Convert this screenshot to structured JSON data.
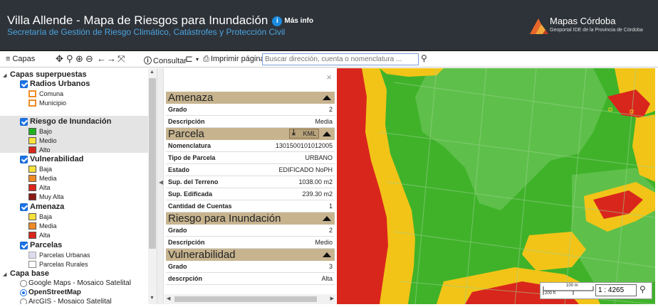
{
  "header": {
    "title": "Villa Allende - Mapa de Riesgos para Inundación",
    "more_info": "Más info",
    "subtitle": "Secretaría de Gestión de Riesgo Climático, Catástrofes y Protección Civil",
    "brand_name": "Mapas Córdoba",
    "brand_sub": "Geoportal IDE de la Provincia de Córdoba"
  },
  "toolbar": {
    "layers_label": "Capas",
    "consult_label": "Consultar",
    "print_label": "Imprimir página",
    "search_placeholder": "Buscar dirección, cuenta o nomenclatura ..."
  },
  "layers": {
    "overlays_title": "Capas superpuestas",
    "radios": {
      "label": "Radios Urbanos",
      "items": [
        "Comuna",
        "Municipio"
      ]
    },
    "riesgo": {
      "label": "Riesgo de Inundación",
      "items": [
        "Bajo",
        "Medio",
        "Alto"
      ]
    },
    "vulnerabilidad": {
      "label": "Vulnerabilidad",
      "items": [
        "Baja",
        "Media",
        "Alta",
        "Muy Alta"
      ]
    },
    "amenaza": {
      "label": "Amenaza",
      "items": [
        "Baja",
        "Media",
        "Alta"
      ]
    },
    "parcelas": {
      "label": "Parcelas",
      "items": [
        "Parcelas Urbanas",
        "Parcelas Rurales"
      ]
    },
    "base_title": "Capa base",
    "base_items": [
      "Google Maps - Mosaico Satelital",
      "OpenStreetMap",
      "ArcGIS - Mosaico Satelital"
    ]
  },
  "info": {
    "amenaza": {
      "title": "Amenaza",
      "rows": [
        [
          "Grado",
          "2"
        ],
        [
          "Descripción",
          "Media"
        ]
      ]
    },
    "parcela": {
      "title": "Parcela",
      "kml": "KML",
      "rows": [
        [
          "Nomenclatura",
          "1301500101012005"
        ],
        [
          "Tipo de Parcela",
          "URBANO"
        ],
        [
          "Estado",
          "EDIFICADO NoPH"
        ],
        [
          "Sup. del Terreno",
          "1038.00 m2"
        ],
        [
          "Sup. Edificada",
          "239.30 m2"
        ],
        [
          "Cantidad de Cuentas",
          "1"
        ]
      ]
    },
    "riesgo": {
      "title": "Riesgo para Inundación",
      "rows": [
        [
          "Grado",
          "2"
        ],
        [
          "Descripción",
          "Medio"
        ]
      ]
    },
    "vulnerabilidad": {
      "title": "Vulnerabilidad",
      "rows": [
        [
          "Grado",
          "3"
        ],
        [
          "descrpción",
          "Alta"
        ]
      ]
    }
  },
  "map": {
    "scale_m": "100 m",
    "scale_ft": "200 ft",
    "scale_value": "1 : 4265"
  },
  "colors": {
    "low": "#1fb21f",
    "medium": "#f2c418",
    "high": "#d9261c",
    "very_high": "#8b1a14"
  }
}
